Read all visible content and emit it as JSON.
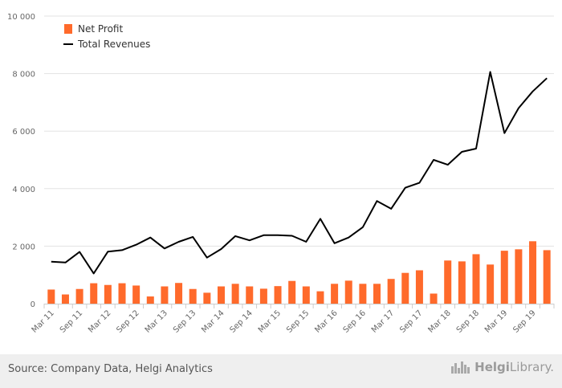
{
  "chart_data": {
    "type": "bar",
    "categories": [
      "Mar 11",
      "Jun 11",
      "Sep 11",
      "Dec 11",
      "Mar 12",
      "Jun 12",
      "Sep 12",
      "Dec 12",
      "Mar 13",
      "Jun 13",
      "Sep 13",
      "Dec 13",
      "Mar 14",
      "Jun 14",
      "Sep 14",
      "Dec 14",
      "Mar 15",
      "Jun 15",
      "Sep 15",
      "Dec 15",
      "Mar 16",
      "Jun 16",
      "Sep 16",
      "Dec 16",
      "Mar 17",
      "Jun 17",
      "Sep 17",
      "Dec 17",
      "Mar 18",
      "Jun 18",
      "Sep 18",
      "Dec 18",
      "Mar 19",
      "Jun 19",
      "Sep 19",
      "Dec 19"
    ],
    "tick_labels": [
      "Mar 11",
      "Sep 11",
      "Mar 12",
      "Sep 12",
      "Mar 13",
      "Sep 13",
      "Mar 14",
      "Sep 14",
      "Mar 15",
      "Sep 15",
      "Mar 16",
      "Sep 16",
      "Mar 17",
      "Sep 17",
      "Mar 18",
      "Sep 18",
      "Mar 19",
      "Sep 19"
    ],
    "series": [
      {
        "name": "Net Profit",
        "kind": "bar",
        "color": "#ff6a2b",
        "values": [
          490,
          320,
          510,
          710,
          650,
          710,
          630,
          250,
          600,
          720,
          510,
          380,
          600,
          690,
          600,
          520,
          610,
          790,
          600,
          430,
          690,
          800,
          690,
          690,
          860,
          1070,
          1160,
          350,
          1500,
          1470,
          1720,
          1360,
          1840,
          1890,
          2170,
          1860
        ]
      },
      {
        "name": "Total Revenues",
        "kind": "line",
        "color": "#000000",
        "values": [
          1460,
          1430,
          1800,
          1050,
          1810,
          1860,
          2050,
          2300,
          1920,
          2150,
          2320,
          1600,
          1900,
          2350,
          2200,
          2380,
          2380,
          2360,
          2150,
          2950,
          2100,
          2300,
          2660,
          3570,
          3300,
          4030,
          4200,
          5000,
          4830,
          5280,
          5390,
          8060,
          5930,
          6800,
          7380,
          7840
        ]
      }
    ],
    "ylim": [
      0,
      10000
    ],
    "yticks": [
      "0",
      "2 000",
      "4 000",
      "6 000",
      "8 000",
      "10 000"
    ],
    "grid": true,
    "legend": "top-left",
    "title": "",
    "xlabel": "",
    "ylabel": ""
  },
  "footer": {
    "source": "Source: Company Data, Helgi Analytics",
    "brand_prefix": "Helgi",
    "brand_suffix": "Library."
  }
}
